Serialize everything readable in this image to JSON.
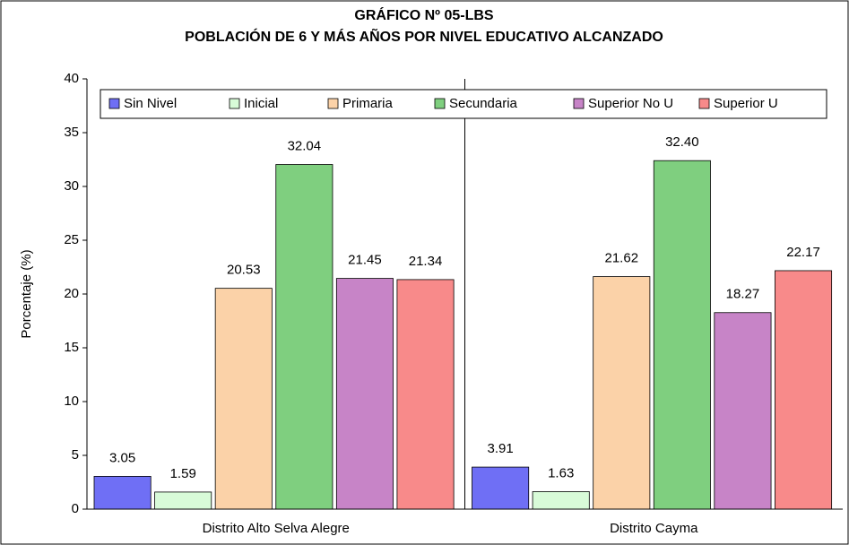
{
  "chart_data": {
    "type": "bar",
    "title": "GRÁFICO Nº 05-LBS",
    "subtitle": "POBLACIÓN DE 6 Y MÁS AÑOS POR NIVEL EDUCATIVO ALCANZADO",
    "y_label": "Porcentaje (%)",
    "categories": [
      "Distrito Alto Selva Alegre",
      "Distrito Cayma"
    ],
    "series": [
      {
        "name": "Sin Nivel",
        "color": "#6f6ff5",
        "values": [
          3.05,
          3.91
        ],
        "value_labels": [
          "3.05",
          "3.91"
        ]
      },
      {
        "name": "Inicial",
        "color": "#d8fbd8",
        "values": [
          1.59,
          1.63
        ],
        "value_labels": [
          "1.59",
          "1.63"
        ]
      },
      {
        "name": "Primaria",
        "color": "#fbd2a8",
        "values": [
          20.53,
          21.62
        ],
        "value_labels": [
          "20.53",
          "21.62"
        ]
      },
      {
        "name": "Secundaria",
        "color": "#7fcf7f",
        "values": [
          32.04,
          32.4
        ],
        "value_labels": [
          "32.04",
          "32.40"
        ]
      },
      {
        "name": "Superior No U",
        "color": "#c784c7",
        "values": [
          21.45,
          18.27
        ],
        "value_labels": [
          "21.45",
          "18.27"
        ]
      },
      {
        "name": "Superior U",
        "color": "#f88a8a",
        "values": [
          21.34,
          22.17
        ],
        "value_labels": [
          "21.34",
          "22.17"
        ]
      }
    ],
    "ylim": [
      0,
      40
    ],
    "yticks": [
      0,
      5,
      10,
      15,
      20,
      25,
      30,
      35,
      40
    ],
    "legend": "top"
  }
}
